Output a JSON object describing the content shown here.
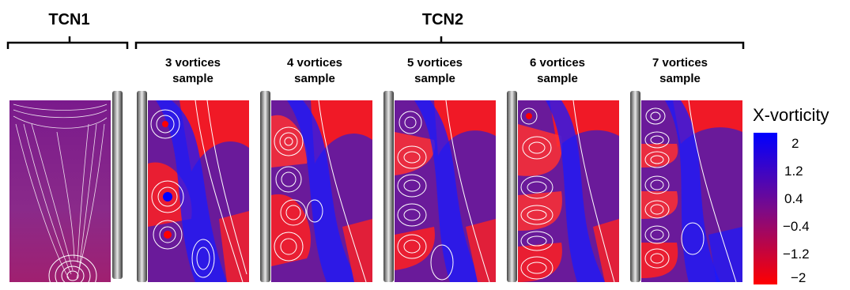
{
  "groups": [
    {
      "label": "TCN1"
    },
    {
      "label": "TCN2"
    }
  ],
  "panels": [
    {
      "line1": "3 vortices",
      "line2": "sample"
    },
    {
      "line1": "4 vortices",
      "line2": "sample"
    },
    {
      "line1": "5 vortices",
      "line2": "sample"
    },
    {
      "line1": "6 vortices",
      "line2": "sample"
    },
    {
      "line1": "7 vortices",
      "line2": "sample"
    }
  ],
  "colorbar": {
    "title": "X-vorticity",
    "ticks": [
      "2",
      "1.2",
      "0.4",
      "−0.4",
      "−1.2",
      "−2"
    ],
    "colors": {
      "high": "#0000ff",
      "mid": "#7a0a8a",
      "low": "#ff0000"
    }
  }
}
